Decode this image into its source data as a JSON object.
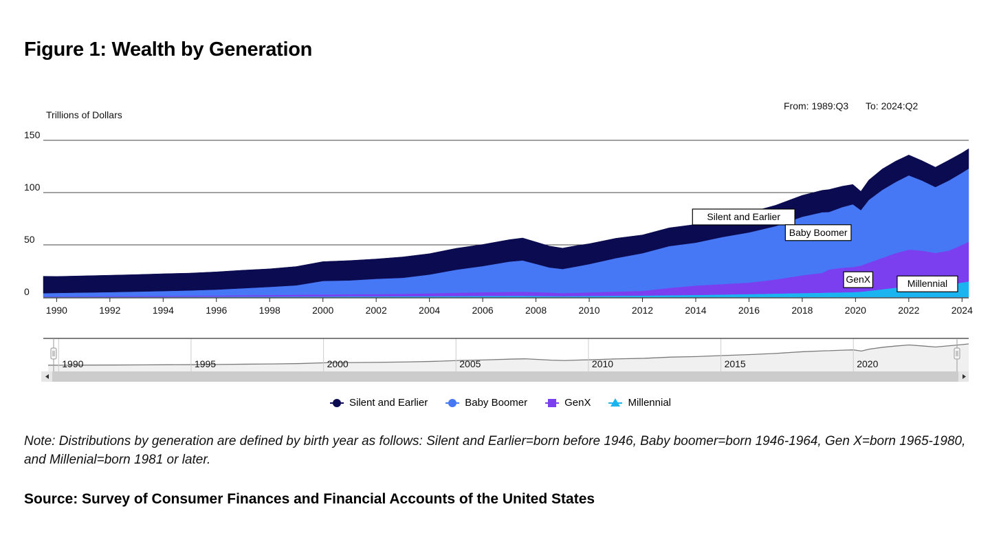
{
  "title": "Figure 1: Wealth by Generation",
  "range": {
    "from": "From: 1989:Q3",
    "to": "To: 2024:Q2"
  },
  "note": "Note: Distributions by generation are defined by birth year as follows: Silent and Earlier=born before 1946, Baby boomer=born 1946-1964, Gen X=born 1965-1980, and Millenial=born 1981 or later.",
  "source": "Source: Survey of Consumer Finances and Financial Accounts of the United States",
  "colors": {
    "silent": "#0b0b52",
    "boomer": "#4677f5",
    "genx": "#7b3ff0",
    "millennial": "#1ab4f0",
    "navigator_fill": "#f0f0f0",
    "navigator_line": "#7a7a7a"
  },
  "chart_data": {
    "type": "area",
    "stacked": true,
    "ylabel": "Trillions of Dollars",
    "xlim": [
      1989.5,
      2024.25
    ],
    "ylim": [
      0,
      150
    ],
    "yticks": [
      0,
      50,
      100,
      150
    ],
    "xticks": [
      1990,
      1992,
      1994,
      1996,
      1998,
      2000,
      2002,
      2004,
      2006,
      2008,
      2010,
      2012,
      2014,
      2016,
      2018,
      2020,
      2022,
      2024
    ],
    "grid": "horizontal",
    "legend_position": "bottom",
    "x": [
      1989.5,
      1990,
      1991,
      1992,
      1993,
      1994,
      1995,
      1996,
      1997,
      1998,
      1999,
      2000,
      2001,
      2002,
      2003,
      2004,
      2005,
      2006,
      2007,
      2007.5,
      2008,
      2008.5,
      2009,
      2009.5,
      2010,
      2011,
      2012,
      2013,
      2014,
      2015,
      2016,
      2017,
      2018,
      2018.75,
      2019,
      2019.5,
      2019.9,
      2020.2,
      2020.5,
      2021,
      2021.5,
      2022,
      2022.5,
      2023,
      2023.5,
      2024,
      2024.25
    ],
    "series": [
      {
        "name": "Millennial",
        "values": [
          0.3,
          0.3,
          0.3,
          0.3,
          0.3,
          0.3,
          0.4,
          0.4,
          0.5,
          0.5,
          0.6,
          0.6,
          0.7,
          0.7,
          0.8,
          0.9,
          1.0,
          1.1,
          1.2,
          1.2,
          1.1,
          1.0,
          0.9,
          1.0,
          1.1,
          1.3,
          1.5,
          1.8,
          2.1,
          2.5,
          2.9,
          3.4,
          3.9,
          4.2,
          4.4,
          4.6,
          4.8,
          5.2,
          6.0,
          7.5,
          9.0,
          10.5,
          11.0,
          11.3,
          12.0,
          14.0,
          15.0
        ]
      },
      {
        "name": "GenX",
        "values": [
          0.5,
          0.5,
          0.6,
          0.7,
          0.8,
          0.9,
          1.0,
          1.1,
          1.3,
          1.5,
          1.7,
          1.9,
          2.0,
          2.2,
          2.4,
          2.7,
          3.2,
          3.6,
          3.8,
          3.9,
          3.7,
          3.4,
          3.0,
          3.2,
          3.5,
          4.0,
          4.5,
          7.0,
          9.0,
          10.0,
          11.0,
          13.5,
          17.0,
          19.0,
          22.0,
          23.5,
          24.0,
          25.0,
          27.0,
          30.0,
          33.0,
          35.0,
          33.5,
          31.0,
          32.5,
          36.0,
          38.0
        ]
      },
      {
        "name": "Baby Boomer",
        "values": [
          3.0,
          3.2,
          3.5,
          3.8,
          4.2,
          4.6,
          5.0,
          5.7,
          6.7,
          7.8,
          9.0,
          13.0,
          13.3,
          14.6,
          15.3,
          18.0,
          22.0,
          25.0,
          29.0,
          30.0,
          27.0,
          24.0,
          23.0,
          25.0,
          27.0,
          32.0,
          36.0,
          40.0,
          41.0,
          45.0,
          48.0,
          51.0,
          56.0,
          58.0,
          55.0,
          58.0,
          60.0,
          53.0,
          60.0,
          65.0,
          68.0,
          71.0,
          67.0,
          63.0,
          67.0,
          69.0,
          70.0
        ]
      },
      {
        "name": "Silent and Earlier",
        "values": [
          16.2,
          15.8,
          16.0,
          16.2,
          16.3,
          16.6,
          16.6,
          17.0,
          17.3,
          17.3,
          18.0,
          18.5,
          19.0,
          19.0,
          20.0,
          20.0,
          20.5,
          20.7,
          21.0,
          21.5,
          21.0,
          20.5,
          20.0,
          20.0,
          19.5,
          19.0,
          17.5,
          17.5,
          17.5,
          18.0,
          19.0,
          20.0,
          20.5,
          21.0,
          21.5,
          20.0,
          19.0,
          18.0,
          19.0,
          20.0,
          20.0,
          19.5,
          19.0,
          19.0,
          19.5,
          19.0,
          19.0
        ]
      }
    ],
    "annotations": [
      {
        "text": "Silent and Earlier",
        "x": 2015.8,
        "y": 77
      },
      {
        "text": "Baby Boomer",
        "x": 2018.6,
        "y": 62
      },
      {
        "text": "GenX",
        "x": 2020.1,
        "y": 17
      },
      {
        "text": "Millennial",
        "x": 2022.7,
        "y": 13
      }
    ],
    "navigator": {
      "xticks": [
        1990,
        1995,
        2000,
        2005,
        2010,
        2015,
        2020
      ]
    }
  }
}
